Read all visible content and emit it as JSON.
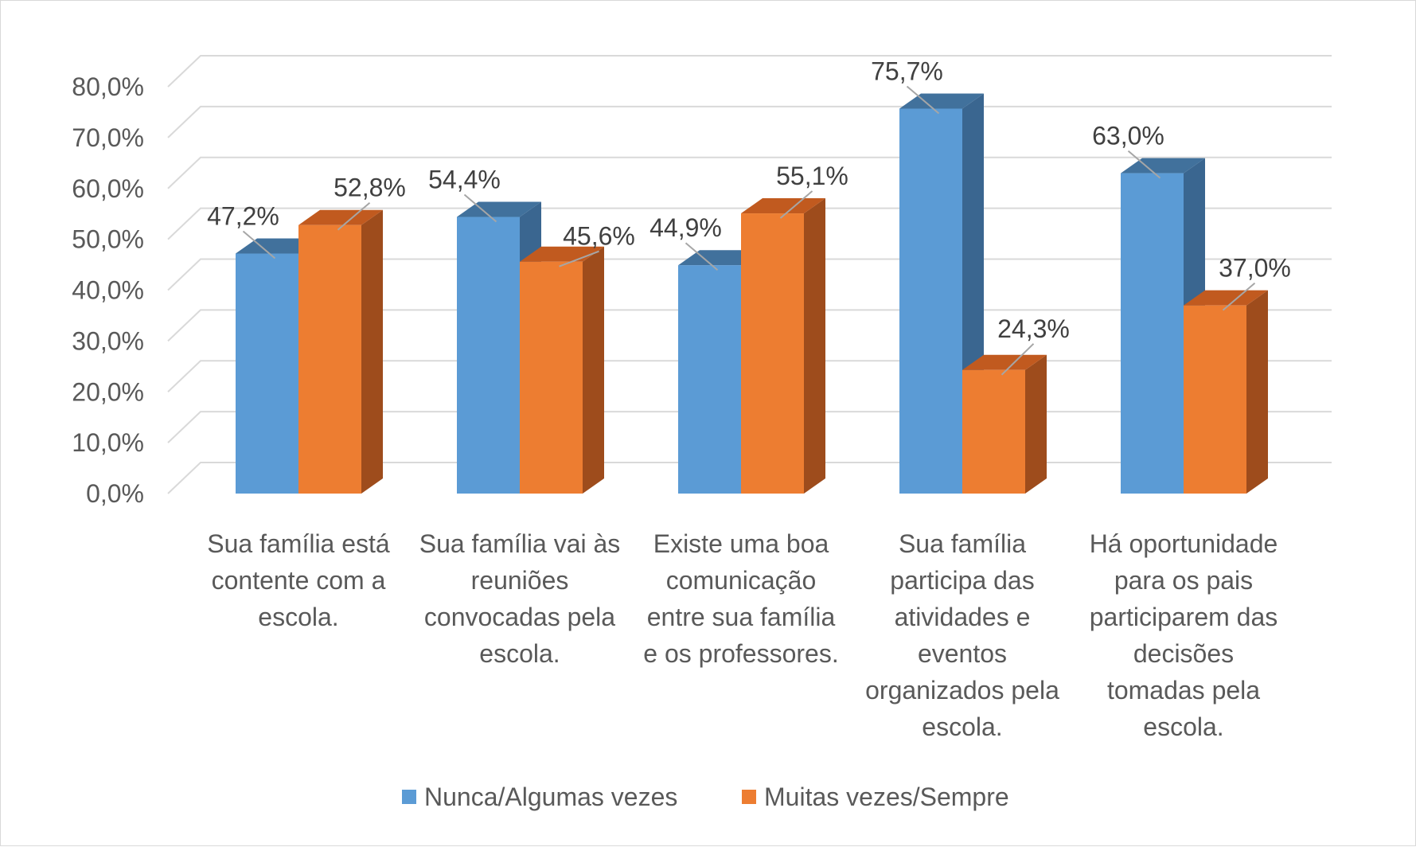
{
  "chart_data": {
    "type": "bar",
    "title": "",
    "xlabel": "",
    "ylabel": "",
    "ylim": [
      0,
      80
    ],
    "ytick_step": 10,
    "ytick_labels": [
      "0,0%",
      "10,0%",
      "20,0%",
      "30,0%",
      "40,0%",
      "50,0%",
      "60,0%",
      "70,0%",
      "80,0%"
    ],
    "grid": true,
    "legend_position": "bottom",
    "categories": [
      [
        "Sua família está",
        "contente com a",
        "escola."
      ],
      [
        "Sua família vai às",
        "reuniões",
        "convocadas pela",
        "escola."
      ],
      [
        "Existe uma boa",
        "comunicação",
        "entre sua família",
        "e os professores."
      ],
      [
        "Sua família",
        "participa das",
        "atividades e",
        "eventos",
        "organizados pela",
        "escola."
      ],
      [
        "Há oportunidade",
        "para os pais",
        "participarem das",
        "decisões",
        "tomadas pela",
        "escola."
      ]
    ],
    "series": [
      {
        "name": "Nunca/Algumas vezes",
        "values": [
          47.2,
          54.4,
          44.9,
          75.7,
          63.0
        ],
        "labels": [
          "47,2%",
          "54,4%",
          "44,9%",
          "75,7%",
          "63,0%"
        ],
        "color": "#5b9bd5",
        "side_color": "#3a6690",
        "top_color": "#41719c"
      },
      {
        "name": "Muitas vezes/Sempre",
        "values": [
          52.8,
          45.6,
          55.1,
          24.3,
          37.0
        ],
        "labels": [
          "52,8%",
          "45,6%",
          "55,1%",
          "24,3%",
          "37,0%"
        ],
        "color": "#ed7d31",
        "side_color": "#9e4c1c",
        "top_color": "#c15a1f"
      }
    ]
  }
}
